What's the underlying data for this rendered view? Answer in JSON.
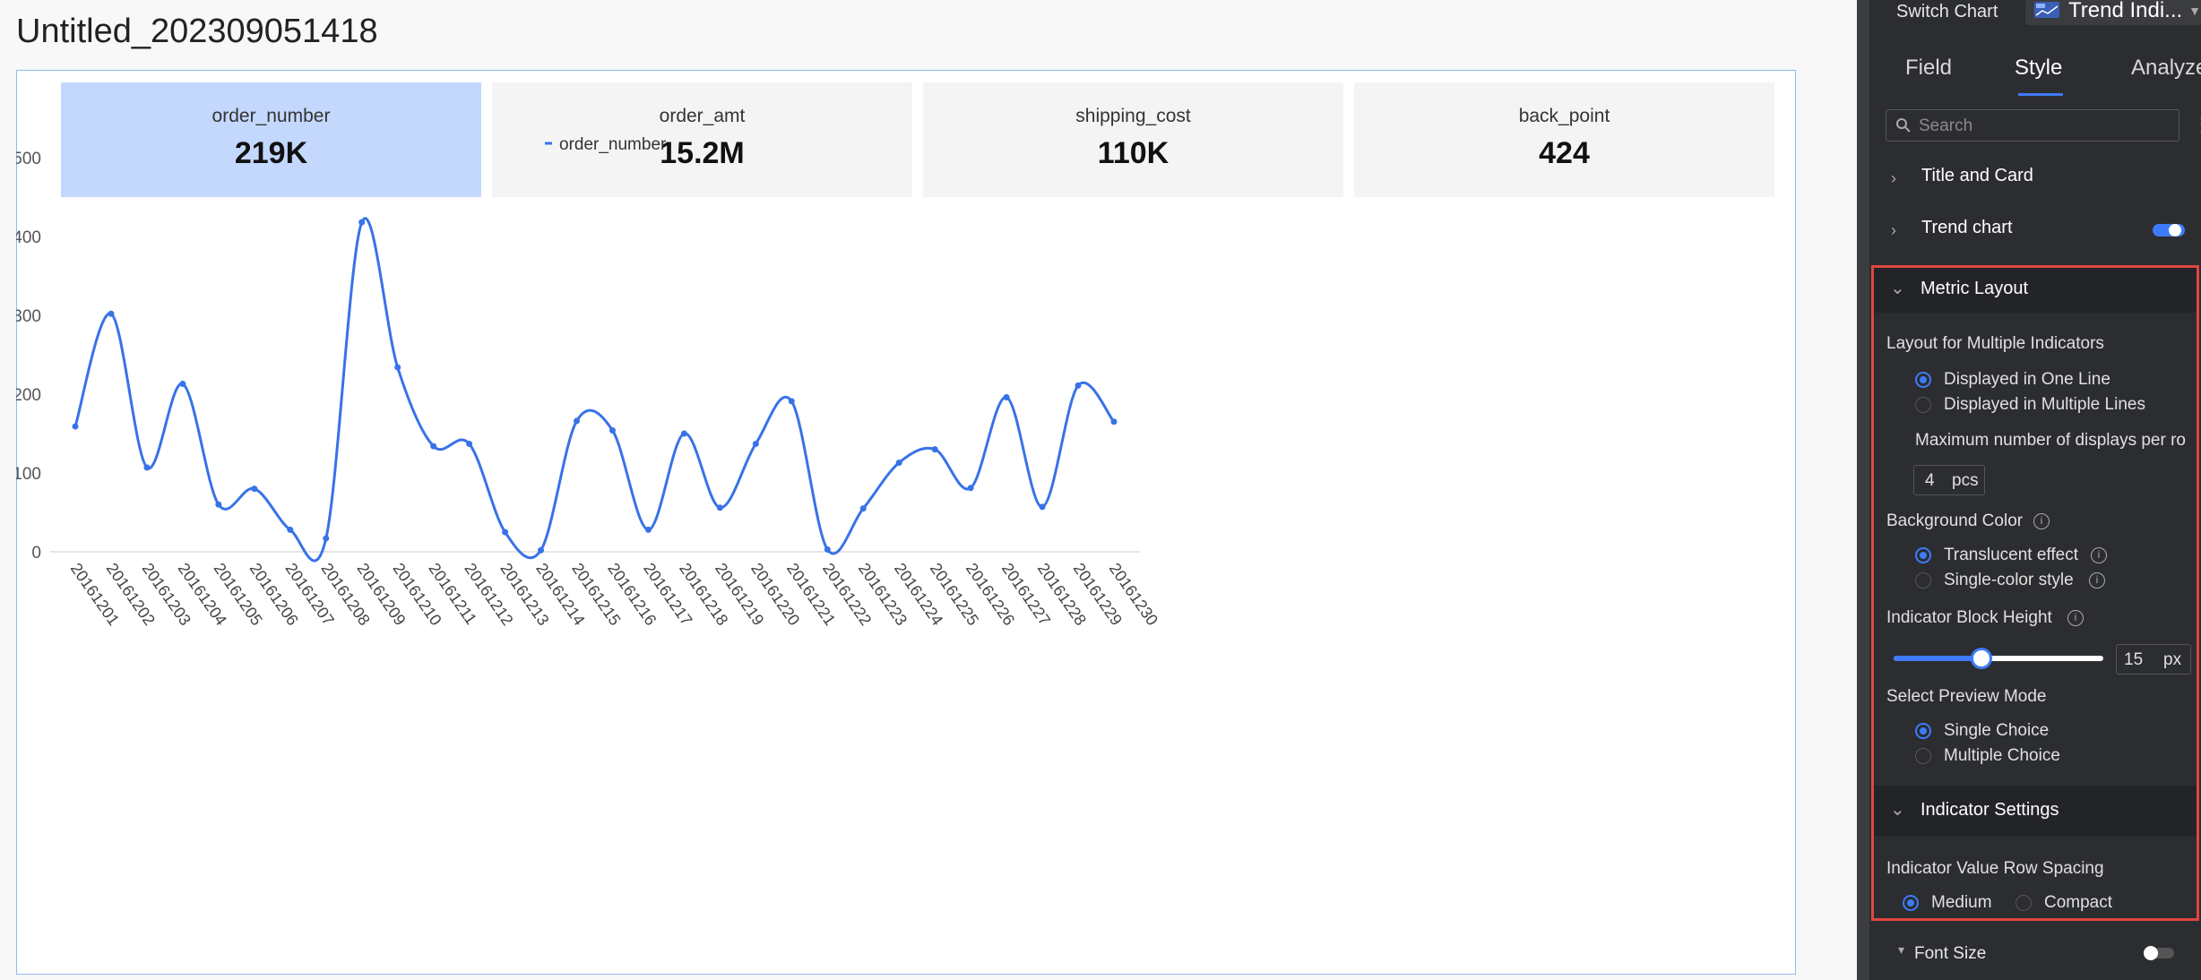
{
  "page": {
    "title": "Untitled_202309051418"
  },
  "cards": [
    {
      "label": "order_number",
      "value": "219K"
    },
    {
      "label": "order_amt",
      "value": "15.2M"
    },
    {
      "label": "shipping_cost",
      "value": "110K"
    },
    {
      "label": "back_point",
      "value": "424"
    }
  ],
  "colors": {
    "accent": "#3e7bfa",
    "line": "#3872e8",
    "active_card": "#c4d8fe",
    "highlight_border": "#e0463f",
    "panel_bg": "#2b2d30"
  },
  "chart_data": {
    "type": "line",
    "legend_position": "top-center",
    "grid": true,
    "ylim": [
      0,
      500
    ],
    "y_ticks": [
      "0",
      "100",
      "200",
      "300",
      "400",
      "500"
    ],
    "categories": [
      "20161201",
      "20161202",
      "20161203",
      "20161204",
      "20161205",
      "20161206",
      "20161207",
      "20161208",
      "20161209",
      "20161210",
      "20161211",
      "20161212",
      "20161213",
      "20161214",
      "20161215",
      "20161216",
      "20161217",
      "20161218",
      "20161219",
      "20161220",
      "20161221",
      "20161222",
      "20161223",
      "20161224",
      "20161225",
      "20161226",
      "20161227",
      "20161228",
      "20161229",
      "20161230"
    ],
    "series": [
      {
        "name": "order_number",
        "values": [
          159,
          302,
          107,
          213,
          60,
          80,
          28,
          17,
          418,
          234,
          134,
          137,
          25,
          2,
          166,
          154,
          28,
          150,
          56,
          137,
          191,
          3,
          55,
          113,
          130,
          81,
          196,
          57,
          211,
          165
        ]
      }
    ]
  },
  "panel": {
    "switch_chart_label": "Switch Chart",
    "chart_type": "Trend Indi...",
    "tabs": [
      "Field",
      "Style",
      "Analyze"
    ],
    "search_placeholder": "Search",
    "sections": {
      "title_card": "Title and Card",
      "trend_chart": "Trend chart",
      "metric_layout": "Metric Layout",
      "indicator_settings": "Indicator Settings",
      "font_size": "Font Size"
    },
    "layout_multi_label": "Layout for Multiple Indicators",
    "layout_options": [
      "Displayed in One Line",
      "Displayed in Multiple Lines"
    ],
    "max_display_label": "Maximum number of displays per ro",
    "max_display_value": "4",
    "max_display_unit": "pcs",
    "bg_color_label": "Background Color",
    "bg_options": [
      "Translucent effect",
      "Single-color style"
    ],
    "block_height_label": "Indicator Block Height",
    "block_height_value": "15",
    "block_height_unit": "px",
    "block_height_slider": 0.42,
    "preview_label": "Select Preview Mode",
    "preview_options": [
      "Single Choice",
      "Multiple Choice"
    ],
    "row_spacing_label": "Indicator Value Row Spacing",
    "row_spacing_options": [
      "Medium",
      "Compact"
    ],
    "trend_chart_enabled": true,
    "font_size_enabled": false
  }
}
